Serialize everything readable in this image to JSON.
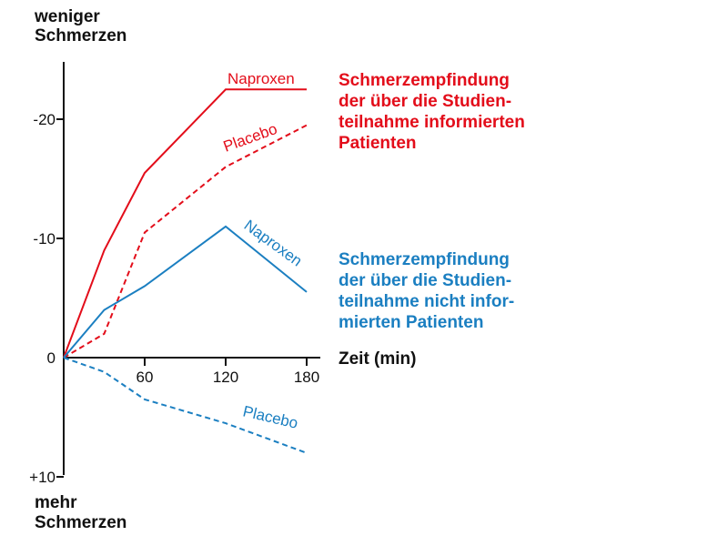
{
  "colors": {
    "red": "#e30d1a",
    "blue": "#1b7fc1",
    "axis": "#111111"
  },
  "chart_data": {
    "type": "line",
    "x": [
      0,
      30,
      60,
      120,
      180
    ],
    "xticks": [
      "60",
      "120",
      "180"
    ],
    "xtick_values": [
      60,
      120,
      180
    ],
    "xlabel": "Zeit (min)",
    "yticks": [
      "-20",
      "-10",
      "0",
      "+10"
    ],
    "ytick_values": [
      -20,
      -10,
      0,
      10
    ],
    "ylim": [
      -25.5,
      10
    ],
    "ylabel_top": [
      "weniger",
      "Schmerzen"
    ],
    "ylabel_bottom": [
      "mehr",
      "Schmerzen"
    ],
    "groups": [
      {
        "title": [
          "Schmerzempfindung",
          "der über die Studien-",
          "teilnahme informierten",
          "Patienten"
        ],
        "color": "#e30d1a"
      },
      {
        "title": [
          "Schmerzempfindung",
          "der über die Studien-",
          "teilnahme nicht infor-",
          "mierten Patienten"
        ],
        "color": "#1b7fc1"
      }
    ],
    "series": [
      {
        "name": "Naproxen",
        "group": 0,
        "style": "solid",
        "color": "#e30d1a",
        "values": [
          0,
          -9,
          -15.5,
          -22.5,
          -22.5
        ]
      },
      {
        "name": "Placebo",
        "group": 0,
        "style": "dashed",
        "color": "#e30d1a",
        "values": [
          0,
          -2,
          -10.5,
          -16,
          -19.5
        ]
      },
      {
        "name": "Naproxen",
        "group": 1,
        "style": "solid",
        "color": "#1b7fc1",
        "values": [
          0,
          -4,
          -6,
          -11,
          -5.5
        ]
      },
      {
        "name": "Placebo",
        "group": 1,
        "style": "dashed",
        "color": "#1b7fc1",
        "values": [
          0,
          1.2,
          3.5,
          5.5,
          8
        ]
      }
    ]
  }
}
